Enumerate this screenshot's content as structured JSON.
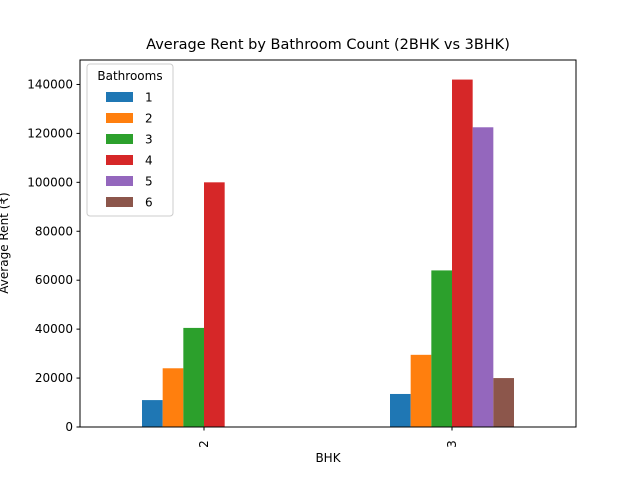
{
  "chart_data": {
    "type": "bar",
    "title": "Average Rent by Bathroom Count (2BHK vs 3BHK)",
    "xlabel": "BHK",
    "ylabel": "Average Rent (₹)",
    "categories": [
      "2",
      "3"
    ],
    "ylim": [
      0,
      150000
    ],
    "yticks": [
      0,
      20000,
      40000,
      60000,
      80000,
      100000,
      120000,
      140000
    ],
    "ytick_labels": [
      "0",
      "20000",
      "40000",
      "60000",
      "80000",
      "100000",
      "120000",
      "140000"
    ],
    "grid": false,
    "legend": {
      "title": "Bathrooms",
      "position": "top-left"
    },
    "series": [
      {
        "name": "1",
        "color": "#1f77b4",
        "values": [
          11000,
          13500
        ]
      },
      {
        "name": "2",
        "color": "#ff7f0e",
        "values": [
          24000,
          29500
        ]
      },
      {
        "name": "3",
        "color": "#2ca02c",
        "values": [
          40500,
          64000
        ]
      },
      {
        "name": "4",
        "color": "#d62728",
        "values": [
          100000,
          142000
        ]
      },
      {
        "name": "5",
        "color": "#9467bd",
        "values": [
          null,
          122500
        ]
      },
      {
        "name": "6",
        "color": "#8c564b",
        "values": [
          null,
          20000
        ]
      }
    ]
  }
}
